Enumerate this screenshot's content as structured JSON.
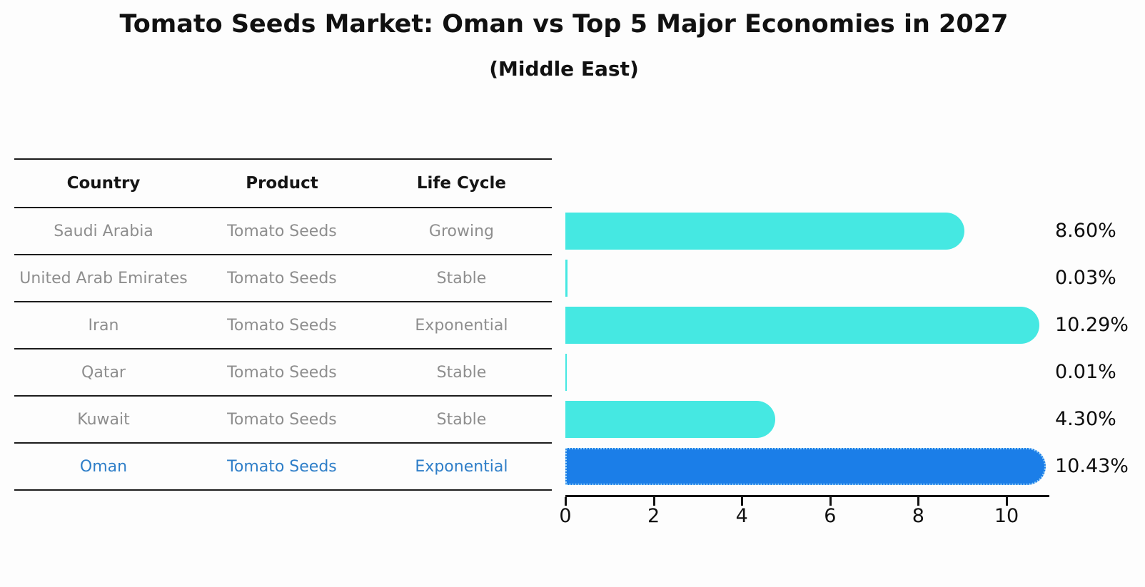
{
  "title": "Tomato Seeds Market: Oman vs Top 5 Major Economies in 2027",
  "subtitle": "(Middle East)",
  "table": {
    "headers": [
      "Country",
      "Product",
      "Life Cycle"
    ],
    "rows": [
      {
        "country": "Saudi Arabia",
        "product": "Tomato Seeds",
        "life_cycle": "Growing",
        "highlight": false
      },
      {
        "country": "United Arab Emirates",
        "product": "Tomato Seeds",
        "life_cycle": "Stable",
        "highlight": false
      },
      {
        "country": "Iran",
        "product": "Tomato Seeds",
        "life_cycle": "Exponential",
        "highlight": false
      },
      {
        "country": "Qatar",
        "product": "Tomato Seeds",
        "life_cycle": "Stable",
        "highlight": false
      },
      {
        "country": "Kuwait",
        "product": "Tomato Seeds",
        "life_cycle": "Stable",
        "highlight": false
      },
      {
        "country": "Oman",
        "product": "Tomato Seeds",
        "life_cycle": "Exponential",
        "highlight": true
      }
    ]
  },
  "chart_data": {
    "type": "bar",
    "orientation": "horizontal",
    "title": "Tomato Seeds Market: Oman vs Top 5 Major Economies in 2027",
    "subtitle": "(Middle East)",
    "categories": [
      "Saudi Arabia",
      "United Arab Emirates",
      "Iran",
      "Qatar",
      "Kuwait",
      "Oman"
    ],
    "values": [
      8.6,
      0.03,
      10.29,
      0.01,
      4.3,
      10.43
    ],
    "value_labels": [
      "8.60%",
      "0.03%",
      "10.29%",
      "0.01%",
      "4.30%",
      "10.43%"
    ],
    "x_ticks": [
      "0",
      "2",
      "4",
      "6",
      "8",
      "10"
    ],
    "x_tick_values": [
      0,
      2,
      4,
      6,
      8,
      10
    ],
    "xlim": [
      0,
      10.97
    ],
    "grid": false,
    "legend": false,
    "bar_color": "#45E8E2",
    "highlight_bar_color": "#1B7EE8",
    "highlight_index": 5
  },
  "colors": {
    "bar": "#45E8E2",
    "highlight_bar": "#1B7EE8",
    "highlight_bar_edge": "#9AD1F7",
    "highlight_text": "#2E7EC8",
    "row_text": "#8E8E8E",
    "header_text": "#151515",
    "table_line": "#1C1C1C",
    "axis": "#111111",
    "background": "#FDFDFD"
  }
}
